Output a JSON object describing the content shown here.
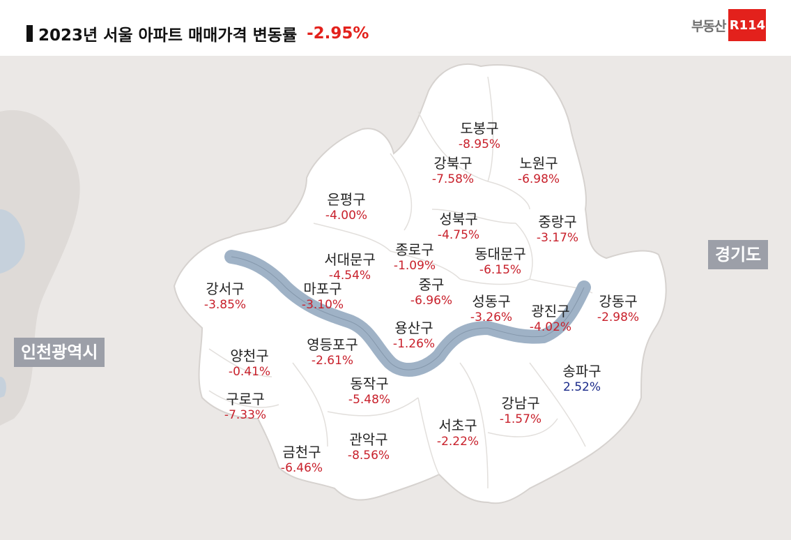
{
  "title": {
    "text": "2023년 서울 아파트 매매가격 변동률",
    "change": "-2.95%"
  },
  "logo": {
    "text": "부동산",
    "badge": "R114"
  },
  "regions": {
    "incheon": "인천광역시",
    "gyeonggi": "경기도"
  },
  "districts": [
    {
      "name": "도봉구",
      "value": "-8.95%"
    },
    {
      "name": "강북구",
      "value": "-7.58%"
    },
    {
      "name": "노원구",
      "value": "-6.98%"
    },
    {
      "name": "은평구",
      "value": "-4.00%"
    },
    {
      "name": "성북구",
      "value": "-4.75%"
    },
    {
      "name": "중랑구",
      "value": "-3.17%"
    },
    {
      "name": "종로구",
      "value": "-1.09%"
    },
    {
      "name": "서대문구",
      "value": "-4.54%"
    },
    {
      "name": "동대문구",
      "value": "-6.15%"
    },
    {
      "name": "중구",
      "value": "-6.96%"
    },
    {
      "name": "강서구",
      "value": "-3.85%"
    },
    {
      "name": "마포구",
      "value": "-3.10%"
    },
    {
      "name": "성동구",
      "value": "-3.26%"
    },
    {
      "name": "광진구",
      "value": "-4.02%"
    },
    {
      "name": "강동구",
      "value": "-2.98%"
    },
    {
      "name": "용산구",
      "value": "-1.26%"
    },
    {
      "name": "영등포구",
      "value": "-2.61%"
    },
    {
      "name": "양천구",
      "value": "-0.41%"
    },
    {
      "name": "송파구",
      "value": "2.52%"
    },
    {
      "name": "동작구",
      "value": "-5.48%"
    },
    {
      "name": "구로구",
      "value": "-7.33%"
    },
    {
      "name": "강남구",
      "value": "-1.57%"
    },
    {
      "name": "서초구",
      "value": "-2.22%"
    },
    {
      "name": "관악구",
      "value": "-8.56%"
    },
    {
      "name": "금천구",
      "value": "-6.46%"
    }
  ],
  "colors": {
    "negative": "#c8202b",
    "positive": "#1a2a8a",
    "title_change": "#e3211c",
    "river": "#9fb2c6",
    "land": "#e8e5e2",
    "seoul": "#ffffff"
  }
}
